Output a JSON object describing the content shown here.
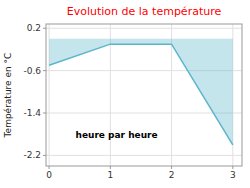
{
  "chart_data": {
    "type": "area",
    "title": "Evolution de la température",
    "xlabel": "heure par heure",
    "ylabel": "Température en °C",
    "x": [
      0,
      1,
      2,
      3
    ],
    "values": [
      -0.5,
      -0.1,
      -0.1,
      -2.0
    ],
    "color": "#5ab5cc",
    "xlim": [
      -0.05,
      3.15
    ],
    "ylim": [
      -2.4,
      0.28
    ],
    "xticks": [
      0,
      1,
      2,
      3
    ],
    "yticks": [
      0.2,
      -0.6,
      -1.4,
      -2.2
    ],
    "grid": true
  }
}
